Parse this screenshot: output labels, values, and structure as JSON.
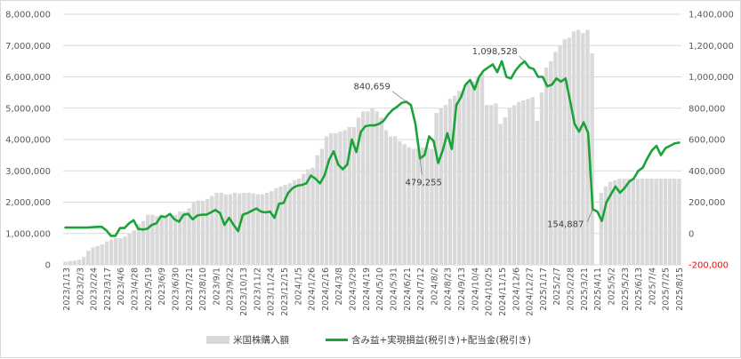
{
  "chart_data": {
    "type": "bar+line",
    "title": "",
    "colors": {
      "bar": "#d9d9d9",
      "line": "#1aa339",
      "negative_tick": "#ff0000",
      "grid": "#d9d9d9",
      "text": "#595959"
    },
    "grid": true,
    "legend_position": "bottom",
    "y_left": {
      "range": [
        0,
        8000000
      ],
      "ticks": [
        "0",
        "1,000,000",
        "2,000,000",
        "3,000,000",
        "4,000,000",
        "5,000,000",
        "6,000,000",
        "7,000,000",
        "8,000,000"
      ]
    },
    "y_right": {
      "range": [
        -200000,
        1400000
      ],
      "ticks": [
        "-200,000",
        "0",
        "200,000",
        "400,000",
        "600,000",
        "800,000",
        "1,000,000",
        "1,200,000",
        "1,400,000"
      ]
    },
    "x_tick_labels": [
      "2023/1/13",
      "2023/2/3",
      "2023/2/24",
      "2023/3/17",
      "2023/4/6",
      "2023/4/28",
      "2023/5/19",
      "2023/6/9",
      "2023/6/30",
      "2023/7/21",
      "2023/8/10",
      "2023/9/1",
      "2023/9/22",
      "2023/10/13",
      "2023/11/2",
      "2023/11/24",
      "2023/12/15",
      "2024/1/5",
      "2024/1/26",
      "2024/2/16",
      "2024/3/8",
      "2024/3/29",
      "2024/4/19",
      "2024/5/10",
      "2024/5/31",
      "2024/6/21",
      "2024/7/12",
      "2024/8/2",
      "2024/8/23",
      "2024/9/13",
      "2024/10/4",
      "2024/10/25",
      "2024/11/15",
      "2024/12/6",
      "2024/12/27",
      "2025/1/17",
      "2025/2/7",
      "2025/2/28",
      "2025/3/21",
      "2025/4/11",
      "2025/5/2",
      "2025/5/23",
      "2025/6/13",
      "2025/7/4",
      "2025/7/25",
      "2025/8/15"
    ],
    "series": [
      {
        "name": "米国株購入額",
        "type": "bar",
        "axis": "left",
        "values": [
          100000,
          120000,
          130000,
          160000,
          250000,
          450000,
          550000,
          600000,
          650000,
          750000,
          800000,
          850000,
          850000,
          900000,
          1000000,
          1100000,
          1300000,
          1400000,
          1600000,
          1600000,
          1550000,
          1600000,
          1500000,
          1550000,
          1600000,
          1700000,
          1700000,
          1800000,
          2000000,
          2050000,
          2050000,
          2100000,
          2200000,
          2300000,
          2300000,
          2250000,
          2250000,
          2300000,
          2280000,
          2300000,
          2300000,
          2280000,
          2250000,
          2250000,
          2300000,
          2350000,
          2450000,
          2500000,
          2550000,
          2600000,
          2700000,
          2750000,
          2900000,
          3050000,
          3100000,
          3500000,
          3700000,
          4100000,
          4200000,
          4200000,
          4250000,
          4300000,
          4400000,
          4400000,
          4700000,
          4900000,
          4900000,
          5000000,
          4900000,
          4700000,
          4300000,
          4100000,
          4100000,
          3950000,
          3850000,
          3750000,
          3700000,
          3700000,
          3750000,
          3750000,
          3700000,
          4850000,
          5000000,
          5100000,
          5300000,
          5400000,
          5550000,
          5600000,
          5800000,
          5850000,
          6000000,
          6100000,
          5100000,
          5100000,
          5150000,
          4500000,
          4700000,
          5000000,
          5100000,
          5200000,
          5250000,
          5300000,
          5350000,
          4600000,
          5500000,
          6300000,
          6500000,
          6800000,
          7000000,
          7200000,
          7250000,
          7450000,
          7500000,
          7400000,
          7500000,
          6750000,
          0,
          2300000,
          2500000,
          2650000,
          2700000,
          2750000,
          2750000,
          2750000,
          2750000,
          2750000,
          2750000,
          2750000,
          2750000,
          2750000,
          2750000,
          2750000,
          2750000,
          2750000,
          2750000
        ]
      },
      {
        "name": "含み益+実現損益(税引き)+配当金(税引き)",
        "type": "line",
        "axis": "right",
        "values": [
          38000,
          38000,
          38000,
          38000,
          38000,
          38000,
          40000,
          42000,
          42000,
          20000,
          -15000,
          -15000,
          35000,
          35000,
          65000,
          85000,
          30000,
          25000,
          30000,
          55000,
          65000,
          110000,
          105000,
          125000,
          90000,
          75000,
          120000,
          125000,
          90000,
          115000,
          120000,
          120000,
          135000,
          150000,
          130000,
          55000,
          100000,
          55000,
          15000,
          120000,
          130000,
          145000,
          160000,
          140000,
          135000,
          140000,
          100000,
          190000,
          195000,
          260000,
          290000,
          305000,
          310000,
          320000,
          370000,
          350000,
          320000,
          370000,
          470000,
          525000,
          440000,
          410000,
          440000,
          600000,
          520000,
          650000,
          685000,
          690000,
          690000,
          700000,
          720000,
          760000,
          790000,
          810000,
          835000,
          840659,
          820000,
          700000,
          479255,
          500000,
          620000,
          590000,
          450000,
          530000,
          640000,
          540000,
          820000,
          870000,
          950000,
          980000,
          920000,
          1000000,
          1040000,
          1060000,
          1080000,
          1030000,
          1100000,
          1000000,
          990000,
          1040000,
          1075000,
          1098528,
          1060000,
          1050000,
          1000000,
          1000000,
          940000,
          950000,
          990000,
          970000,
          990000,
          850000,
          700000,
          650000,
          710000,
          640000,
          154887,
          140000,
          80000,
          200000,
          250000,
          300000,
          260000,
          290000,
          330000,
          350000,
          400000,
          420000,
          480000,
          530000,
          560000,
          500000,
          545000,
          560000,
          575000,
          580000
        ]
      }
    ],
    "annotations": [
      {
        "text": "840,659",
        "series": 1,
        "index": 75
      },
      {
        "text": "479,255",
        "series": 1,
        "index": 78
      },
      {
        "text": "1,098,528",
        "series": 1,
        "index": 101
      },
      {
        "text": "154,887",
        "series": 1,
        "index": 116
      }
    ]
  }
}
